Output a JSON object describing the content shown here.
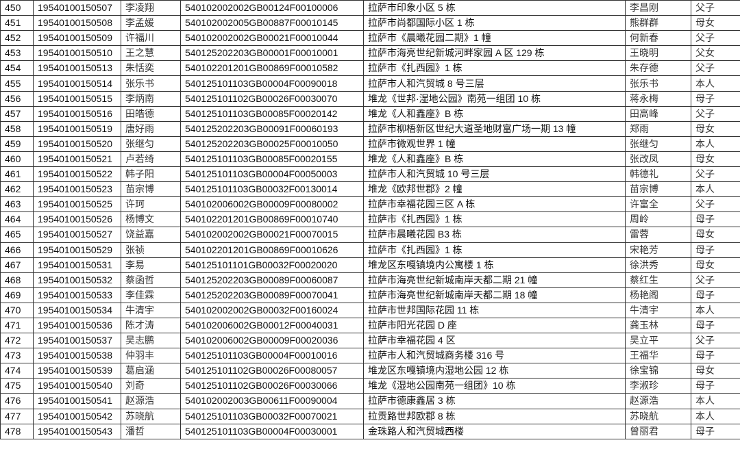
{
  "rows": [
    [
      "450",
      "19540100150507",
      "李凌翔",
      "540102002002GB00124F00100006",
      "拉萨市印象小区 5 栋",
      "李昌刚",
      "父子"
    ],
    [
      "451",
      "19540100150508",
      "李孟媛",
      "540102002005GB00887F00010145",
      "拉萨市尚都国际小区 1 栋",
      "熊群群",
      "母女"
    ],
    [
      "452",
      "19540100150509",
      "许福川",
      "540102002002GB00021F00010044",
      "拉萨市《晨曦花园二期》1 幢",
      "何新春",
      "父子"
    ],
    [
      "453",
      "19540100150510",
      "王之慧",
      "540125202203GB00001F00010001",
      "拉萨市海亮世纪新城河畔家园 A 区 129 栋",
      "王晓明",
      "父女"
    ],
    [
      "454",
      "19540100150513",
      "朱恬奕",
      "540102201201GB00869F00010582",
      "拉萨市《扎西园》1 栋",
      "朱存德",
      "父子"
    ],
    [
      "455",
      "19540100150514",
      "张乐书",
      "540125101103GB00004F00090018",
      "拉萨市人和汽贸城 8 号三层",
      "张乐书",
      "本人"
    ],
    [
      "456",
      "19540100150515",
      "李炳南",
      "540125101102GB00026F00030070",
      "堆龙《世邦·湿地公园》南苑一组团 10 栋",
      "蒋永梅",
      "母子"
    ],
    [
      "457",
      "19540100150516",
      "田皓德",
      "540125101103GB00085F00020142",
      "堆龙《人和鑫座》B 栋",
      "田高峰",
      "父子"
    ],
    [
      "458",
      "19540100150519",
      "唐好雨",
      "540125202203GB00091F00060193",
      "拉萨市柳梧新区世纪大道圣地财富广场一期 13 幢",
      "郑雨",
      "母女"
    ],
    [
      "459",
      "19540100150520",
      "张继匀",
      "540125202203GB00025F00010050",
      "拉萨市微观世界 1 幢",
      "张继匀",
      "本人"
    ],
    [
      "460",
      "19540100150521",
      "卢若绮",
      "540125101103GB00085F00020155",
      "堆龙《人和鑫座》B 栋",
      "张改凤",
      "母女"
    ],
    [
      "461",
      "19540100150522",
      "韩子阳",
      "540125101103GB00004F00050003",
      "拉萨市人和汽贸城 10 号三层",
      "韩德礼",
      "父子"
    ],
    [
      "462",
      "19540100150523",
      "苗宗博",
      "540125101103GB00032F00130014",
      "堆龙《欧邦世郡》2 幢",
      "苗宗博",
      "本人"
    ],
    [
      "463",
      "19540100150525",
      "许珂",
      "540102006002GB00009F00080002",
      "拉萨市幸福花园三区 A 栋",
      "许富全",
      "父子"
    ],
    [
      "464",
      "19540100150526",
      "杨博文",
      "540102201201GB00869F00010740",
      "拉萨市《扎西园》1 栋",
      "周岭",
      "母子"
    ],
    [
      "465",
      "19540100150527",
      "饶益嘉",
      "540102002002GB00021F00070015",
      "拉萨市晨曦花园 B3 栋",
      "雷蓉",
      "母女"
    ],
    [
      "466",
      "19540100150529",
      "张祯",
      "540102201201GB00869F00010626",
      "拉萨市《扎西园》1 栋",
      "宋艳芳",
      "母子"
    ],
    [
      "467",
      "19540100150531",
      "李易",
      "540125101101GB00032F00020020",
      "堆龙区东嘎镇境内公寓楼 1 栋",
      "徐洪秀",
      "母女"
    ],
    [
      "468",
      "19540100150532",
      "蔡函哲",
      "540125202203GB00089F00060087",
      "拉萨市海亮世纪新城南岸天都二期 21 幢",
      "蔡红生",
      "父子"
    ],
    [
      "469",
      "19540100150533",
      "李佳霖",
      "540125202203GB00089F00070041",
      "拉萨市海亮世纪新城南岸天都二期 18 幢",
      "杨艳阁",
      "母子"
    ],
    [
      "470",
      "19540100150534",
      "牛清宇",
      "540102002002GB00032F00160024",
      "拉萨市世邦国际花园 11 栋",
      "牛清宇",
      "本人"
    ],
    [
      "471",
      "19540100150536",
      "陈才涛",
      "540102006002GB00012F00040031",
      "拉萨市阳光花园 D 座",
      "龚玉林",
      "母子"
    ],
    [
      "472",
      "19540100150537",
      "吴志鹏",
      "540102006002GB00009F00020036",
      "拉萨市幸福花园 4 区",
      "吴立平",
      "父子"
    ],
    [
      "473",
      "19540100150538",
      "仲羽丰",
      "540125101103GB00004F00010016",
      "拉萨市人和汽贸城商务楼 316 号",
      "王福华",
      "母子"
    ],
    [
      "474",
      "19540100150539",
      "葛启涵",
      "540125101102GB00026F00080057",
      "堆龙区东嘎镇境内湿地公园 12 栋",
      "徐宝锦",
      "母女"
    ],
    [
      "475",
      "19540100150540",
      "刘奇",
      "540125101102GB00026F00030066",
      "堆龙《湿地公园南苑一组团》10 栋",
      "李淑珍",
      "母子"
    ],
    [
      "476",
      "19540100150541",
      "赵源浩",
      "540102002003GB00611F00090004",
      "拉萨市德康鑫居 3 栋",
      "赵源浩",
      "本人"
    ],
    [
      "477",
      "19540100150542",
      "苏晓航",
      "540125101103GB00032F00070021",
      "拉贡路世邦欧郡 8 栋",
      "苏晓航",
      "本人"
    ],
    [
      "478",
      "19540100150543",
      "潘哲",
      "540125101103GB00004F00030001",
      "金珠路人和汽贸城西楼",
      "曾丽君",
      "母子"
    ]
  ]
}
